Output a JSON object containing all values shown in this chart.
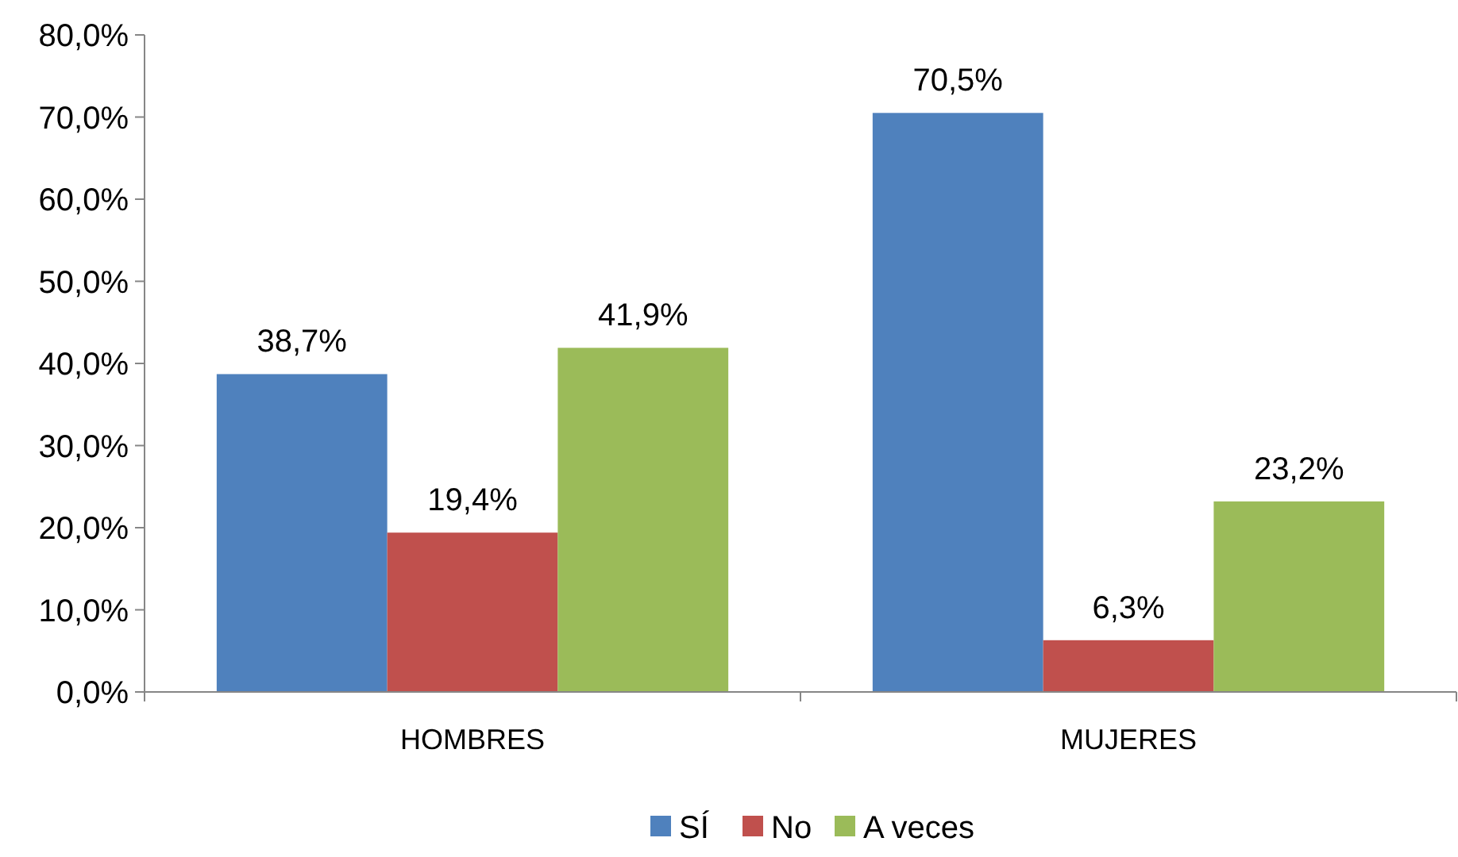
{
  "chart_data": {
    "type": "bar",
    "categories": [
      "HOMBRES",
      "MUJERES"
    ],
    "series": [
      {
        "name": "SÍ",
        "color": "#4f81bd",
        "values": [
          38.7,
          70.5
        ],
        "value_labels": [
          "38,7%",
          "70,5%"
        ]
      },
      {
        "name": "No",
        "color": "#c0504d",
        "values": [
          19.4,
          6.3
        ],
        "value_labels": [
          "19,4%",
          "6,3%"
        ]
      },
      {
        "name": "A veces",
        "color": "#9bbb59",
        "values": [
          41.9,
          23.2
        ],
        "value_labels": [
          "41,9%",
          "23,2%"
        ]
      }
    ],
    "ylim": [
      0,
      80
    ],
    "yticks": [
      {
        "value": 0,
        "label": "0,0%"
      },
      {
        "value": 10,
        "label": "10,0%"
      },
      {
        "value": 20,
        "label": "20,0%"
      },
      {
        "value": 30,
        "label": "30,0%"
      },
      {
        "value": 40,
        "label": "40,0%"
      },
      {
        "value": 50,
        "label": "50,0%"
      },
      {
        "value": 60,
        "label": "60,0%"
      },
      {
        "value": 70,
        "label": "70,0%"
      },
      {
        "value": 80,
        "label": "80,0%"
      }
    ],
    "grid": false,
    "legend": "bottom"
  }
}
